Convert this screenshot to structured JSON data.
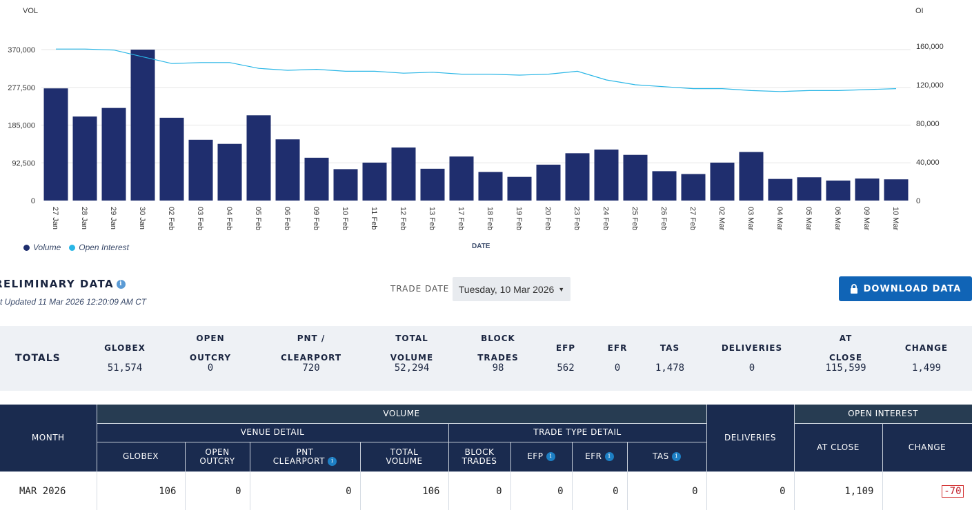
{
  "chart_data": {
    "type": "bar",
    "left_axis_label": "VOL",
    "right_axis_label": "OI",
    "xlabel": "DATE",
    "left_ylim": [
      0,
      370000
    ],
    "right_ylim": [
      0,
      160000
    ],
    "left_ticks": [
      "370,000",
      "277,500",
      "185,000",
      "92,500",
      "0"
    ],
    "right_ticks": [
      "160,000",
      "120,000",
      "80,000",
      "40,000",
      "0"
    ],
    "categories": [
      "27 Jan",
      "28 Jan",
      "29 Jan",
      "30 Jan",
      "02 Feb",
      "03 Feb",
      "04 Feb",
      "05 Feb",
      "06 Feb",
      "09 Feb",
      "10 Feb",
      "11 Feb",
      "12 Feb",
      "13 Feb",
      "17 Feb",
      "18 Feb",
      "19 Feb",
      "20 Feb",
      "23 Feb",
      "24 Feb",
      "25 Feb",
      "26 Feb",
      "27 Feb",
      "02 Mar",
      "03 Mar",
      "04 Mar",
      "05 Mar",
      "06 Mar",
      "09 Mar",
      "10 Mar"
    ],
    "series": [
      {
        "name": "Volume",
        "type": "bar",
        "color": "#1f2e6e",
        "values": [
          275000,
          206000,
          227000,
          370000,
          203000,
          149000,
          139000,
          209000,
          150000,
          105000,
          77000,
          93000,
          130000,
          78000,
          108000,
          70000,
          58000,
          88000,
          116000,
          125000,
          112000,
          72000,
          65000,
          93000,
          119000,
          53000,
          57000,
          49000,
          54000,
          52000
        ]
      },
      {
        "name": "Open Interest",
        "type": "line",
        "color": "#29b6e6",
        "values": [
          157000,
          157000,
          156000,
          149000,
          142000,
          143000,
          143000,
          137000,
          135000,
          136000,
          134000,
          134000,
          132000,
          133000,
          131000,
          131000,
          130000,
          131000,
          134000,
          125000,
          120000,
          118000,
          116000,
          116000,
          114000,
          113000,
          114000,
          114000,
          115000,
          116000
        ]
      }
    ]
  },
  "legend": [
    {
      "label": "Volume",
      "color": "#1f2e6e"
    },
    {
      "label": "Open Interest",
      "color": "#29b6e6"
    }
  ],
  "header": {
    "title": "RELIMINARY DATA",
    "updated": "st Updated 11 Mar 2026 12:20:09 AM CT",
    "trade_date_label": "TRADE DATE",
    "trade_date_value": "Tuesday, 10 Mar 2026",
    "download_label": "DOWNLOAD DATA"
  },
  "totals": {
    "label": "TOTALS",
    "columns": [
      {
        "head1": "GLOBEX",
        "head2": "",
        "value": "51,574"
      },
      {
        "head1": "OPEN",
        "head2": "OUTCRY",
        "value": "0"
      },
      {
        "head1": "PNT /",
        "head2": "CLEARPORT",
        "value": "720"
      },
      {
        "head1": "TOTAL",
        "head2": "VOLUME",
        "value": "52,294"
      },
      {
        "head1": "BLOCK",
        "head2": "TRADES",
        "value": "98"
      },
      {
        "head1": "EFP",
        "head2": "",
        "value": "562"
      },
      {
        "head1": "EFR",
        "head2": "",
        "value": "0"
      },
      {
        "head1": "TAS",
        "head2": "",
        "value": "1,478"
      },
      {
        "head1": "DELIVERIES",
        "head2": "",
        "value": "0"
      },
      {
        "head1": "AT",
        "head2": "CLOSE",
        "value": "115,599"
      },
      {
        "head1": "CHANGE",
        "head2": "",
        "value": "1,499"
      }
    ]
  },
  "table": {
    "month_header": "MONTH",
    "volume_header": "VOLUME",
    "venue_detail": "VENUE DETAIL",
    "trade_type_detail": "TRADE TYPE DETAIL",
    "deliveries_header": "DELIVERIES",
    "open_interest_header": "OPEN INTEREST",
    "cols": {
      "globex": "GLOBEX",
      "open_outcry_1": "OPEN",
      "open_outcry_2": "OUTCRY",
      "pnt_1": "PNT",
      "pnt_2": "CLEARPORT",
      "total_1": "TOTAL",
      "total_2": "VOLUME",
      "block_1": "BLOCK",
      "block_2": "TRADES",
      "efp": "EFP",
      "efr": "EFR",
      "tas": "TAS",
      "at_close": "AT CLOSE",
      "change": "CHANGE"
    },
    "rows": [
      {
        "month": "MAR 2026",
        "globex": "106",
        "open_outcry": "0",
        "pnt": "0",
        "total": "106",
        "block": "0",
        "efp": "0",
        "efr": "0",
        "tas": "0",
        "deliveries": "0",
        "at_close": "1,109",
        "change": "-70"
      }
    ]
  }
}
